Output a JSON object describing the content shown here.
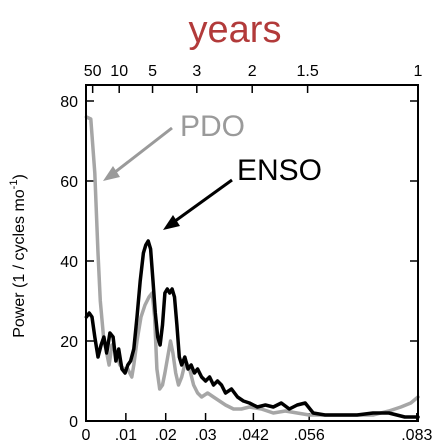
{
  "chart_data": {
    "type": "line",
    "title": "years",
    "xlabel": "",
    "ylabel": "Power (1 / cycles mo",
    "ylabel_sup": "-1",
    "ylabel_close": ")",
    "ylim": [
      0,
      84
    ],
    "xlim": [
      0,
      0.0833
    ],
    "y_ticks": [
      {
        "value": 0,
        "label": "0"
      },
      {
        "value": 20,
        "label": "20"
      },
      {
        "value": 40,
        "label": "40"
      },
      {
        "value": 60,
        "label": "60"
      },
      {
        "value": 80,
        "label": "80"
      }
    ],
    "x_ticks": [
      {
        "value": 0,
        "label": "0"
      },
      {
        "value": 0.01,
        "label": ".01"
      },
      {
        "value": 0.02,
        "label": ".02"
      },
      {
        "value": 0.03,
        "label": ".03"
      },
      {
        "value": 0.042,
        "label": ".042"
      },
      {
        "value": 0.056,
        "label": ".056"
      },
      {
        "value": 0.083,
        "label": ".083"
      }
    ],
    "top_ticks": [
      {
        "value": 0.00167,
        "label": "50"
      },
      {
        "value": 0.00833,
        "label": "10"
      },
      {
        "value": 0.0167,
        "label": "5"
      },
      {
        "value": 0.0278,
        "label": "3"
      },
      {
        "value": 0.0417,
        "label": "2"
      },
      {
        "value": 0.0556,
        "label": "1.5"
      },
      {
        "value": 0.0833,
        "label": "1"
      }
    ],
    "series": [
      {
        "name": "PDO",
        "color": "#a6a6a6",
        "points": [
          [
            0.0001,
            76
          ],
          [
            0.0012,
            75.5
          ],
          [
            0.0022,
            62
          ],
          [
            0.003,
            42
          ],
          [
            0.0036,
            30
          ],
          [
            0.0045,
            20
          ],
          [
            0.005,
            18
          ],
          [
            0.0058,
            14
          ],
          [
            0.0065,
            19
          ],
          [
            0.0075,
            17
          ],
          [
            0.0085,
            14
          ],
          [
            0.0095,
            13
          ],
          [
            0.0105,
            13
          ],
          [
            0.0115,
            11
          ],
          [
            0.012,
            14
          ],
          [
            0.0128,
            20
          ],
          [
            0.0138,
            26
          ],
          [
            0.0148,
            29
          ],
          [
            0.0158,
            31
          ],
          [
            0.0166,
            32
          ],
          [
            0.0172,
            26
          ],
          [
            0.0178,
            13
          ],
          [
            0.0185,
            8
          ],
          [
            0.0192,
            9
          ],
          [
            0.0198,
            12
          ],
          [
            0.0205,
            16
          ],
          [
            0.0212,
            20
          ],
          [
            0.0218,
            17
          ],
          [
            0.0225,
            12
          ],
          [
            0.0232,
            9
          ],
          [
            0.024,
            11
          ],
          [
            0.025,
            15
          ],
          [
            0.026,
            13
          ],
          [
            0.027,
            9
          ],
          [
            0.028,
            7
          ],
          [
            0.029,
            6
          ],
          [
            0.0305,
            7
          ],
          [
            0.032,
            6
          ],
          [
            0.0335,
            5
          ],
          [
            0.035,
            4
          ],
          [
            0.037,
            3
          ],
          [
            0.039,
            3
          ],
          [
            0.041,
            3.5
          ],
          [
            0.044,
            3
          ],
          [
            0.047,
            2
          ],
          [
            0.05,
            2.5
          ],
          [
            0.053,
            2
          ],
          [
            0.056,
            1.5
          ],
          [
            0.06,
            1.5
          ],
          [
            0.064,
            1.5
          ],
          [
            0.068,
            1.5
          ],
          [
            0.072,
            1.5
          ],
          [
            0.076,
            2.5
          ],
          [
            0.079,
            3.5
          ],
          [
            0.0815,
            4.5
          ],
          [
            0.0833,
            6
          ]
        ]
      },
      {
        "name": "ENSO",
        "color": "#000000",
        "points": [
          [
            0.0001,
            26
          ],
          [
            0.0008,
            27
          ],
          [
            0.0015,
            26
          ],
          [
            0.0022,
            21
          ],
          [
            0.003,
            16
          ],
          [
            0.0038,
            19
          ],
          [
            0.0045,
            21
          ],
          [
            0.0052,
            17
          ],
          [
            0.006,
            22
          ],
          [
            0.0068,
            21
          ],
          [
            0.0075,
            15
          ],
          [
            0.0082,
            18
          ],
          [
            0.009,
            13
          ],
          [
            0.0098,
            12
          ],
          [
            0.0105,
            14
          ],
          [
            0.0112,
            15
          ],
          [
            0.012,
            18
          ],
          [
            0.0128,
            26
          ],
          [
            0.0136,
            35
          ],
          [
            0.0144,
            42
          ],
          [
            0.015,
            44
          ],
          [
            0.0156,
            45
          ],
          [
            0.0162,
            43
          ],
          [
            0.0168,
            35
          ],
          [
            0.0174,
            27
          ],
          [
            0.018,
            21
          ],
          [
            0.0186,
            19
          ],
          [
            0.0192,
            24
          ],
          [
            0.0198,
            32
          ],
          [
            0.0204,
            33
          ],
          [
            0.021,
            32
          ],
          [
            0.0216,
            33
          ],
          [
            0.0222,
            31
          ],
          [
            0.0228,
            24
          ],
          [
            0.0234,
            16
          ],
          [
            0.024,
            14
          ],
          [
            0.0248,
            16
          ],
          [
            0.0256,
            13
          ],
          [
            0.0264,
            14
          ],
          [
            0.0272,
            12
          ],
          [
            0.028,
            13
          ],
          [
            0.029,
            11
          ],
          [
            0.03,
            10
          ],
          [
            0.031,
            11
          ],
          [
            0.032,
            9
          ],
          [
            0.033,
            10
          ],
          [
            0.034,
            9
          ],
          [
            0.035,
            7
          ],
          [
            0.0365,
            8
          ],
          [
            0.038,
            6
          ],
          [
            0.0395,
            5
          ],
          [
            0.041,
            4.5
          ],
          [
            0.043,
            3.5
          ],
          [
            0.045,
            4
          ],
          [
            0.047,
            3.5
          ],
          [
            0.049,
            4.5
          ],
          [
            0.051,
            3
          ],
          [
            0.053,
            4
          ],
          [
            0.055,
            4.5
          ],
          [
            0.057,
            2
          ],
          [
            0.06,
            1.5
          ],
          [
            0.064,
            1.5
          ],
          [
            0.068,
            1.5
          ],
          [
            0.072,
            2
          ],
          [
            0.076,
            2
          ],
          [
            0.08,
            1
          ],
          [
            0.0833,
            1
          ]
        ]
      }
    ],
    "annotations": [
      {
        "text": "PDO",
        "series": "PDO"
      },
      {
        "text": "ENSO",
        "series": "ENSO"
      }
    ]
  }
}
